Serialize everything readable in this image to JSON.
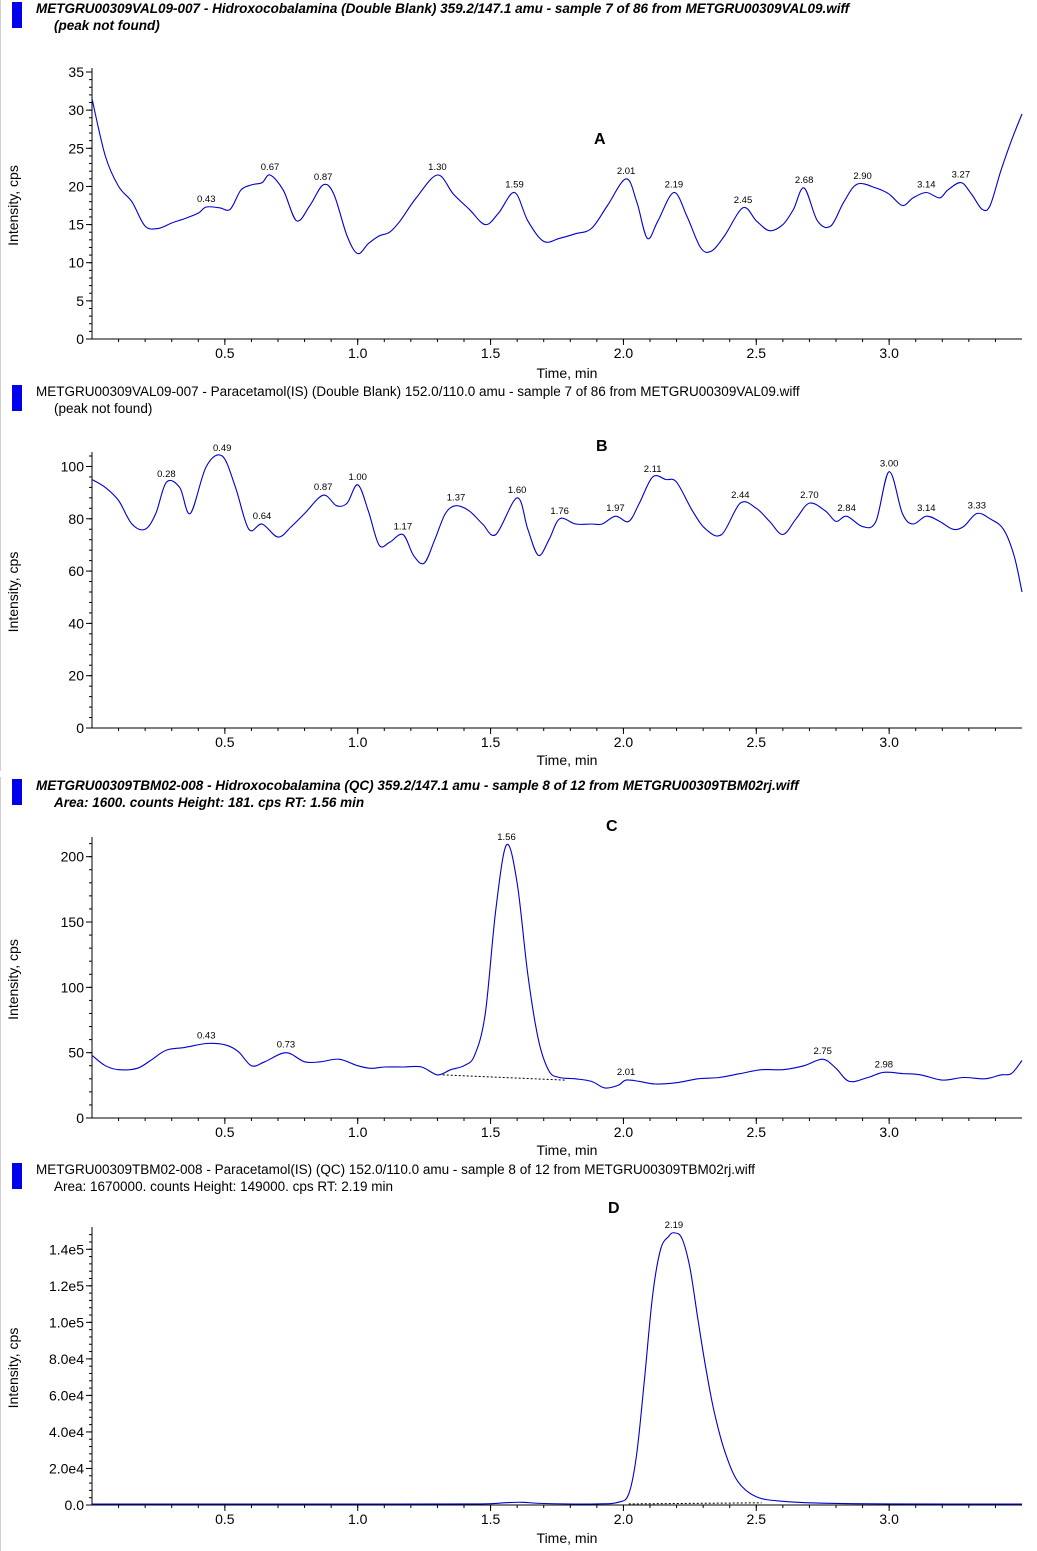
{
  "chart_data": [
    {
      "id": "A",
      "type": "line",
      "letter": "A",
      "header_line1": "METGRU00309VAL09-007 - Hidroxocobalamina (Double Blank) 359.2/147.1 amu - sample 7 of 86 from METGRU00309VAL09.wiff",
      "header_line2": "(peak not found)",
      "xlabel": "Time, min",
      "ylabel": "Intensity, cps",
      "xlim": [
        0.0,
        3.5
      ],
      "ylim": [
        0,
        35
      ],
      "xticks": [
        0.5,
        1.0,
        1.5,
        2.0,
        2.5,
        3.0
      ],
      "xtick_labels": [
        "0.5",
        "1.0",
        "1.5",
        "2.0",
        "2.5",
        "3.0"
      ],
      "yticks": [
        0,
        5,
        10,
        15,
        20,
        25,
        30,
        35
      ],
      "ytick_labels": [
        "0",
        "5",
        "10",
        "15",
        "20",
        "25",
        "30",
        "35"
      ],
      "x": [
        0.0,
        0.05,
        0.1,
        0.15,
        0.2,
        0.25,
        0.3,
        0.35,
        0.4,
        0.43,
        0.48,
        0.52,
        0.56,
        0.6,
        0.64,
        0.67,
        0.72,
        0.77,
        0.82,
        0.87,
        0.91,
        0.96,
        1.0,
        1.04,
        1.08,
        1.12,
        1.16,
        1.22,
        1.3,
        1.36,
        1.42,
        1.48,
        1.53,
        1.59,
        1.64,
        1.7,
        1.76,
        1.82,
        1.88,
        1.94,
        2.01,
        2.05,
        2.09,
        2.13,
        2.19,
        2.24,
        2.29,
        2.33,
        2.38,
        2.45,
        2.5,
        2.55,
        2.6,
        2.64,
        2.68,
        2.73,
        2.78,
        2.83,
        2.88,
        2.95,
        3.0,
        3.05,
        3.09,
        3.14,
        3.19,
        3.22,
        3.27,
        3.31,
        3.35,
        3.38,
        3.42,
        3.46,
        3.5
      ],
      "y": [
        31.5,
        24.0,
        20.0,
        18.0,
        14.8,
        14.5,
        15.2,
        15.8,
        16.5,
        17.3,
        17.2,
        17.0,
        19.5,
        20.2,
        20.5,
        21.5,
        19.5,
        15.5,
        17.5,
        20.2,
        19.0,
        13.5,
        11.2,
        12.5,
        13.5,
        14.0,
        15.5,
        18.5,
        21.5,
        19.0,
        17.0,
        15.0,
        16.5,
        19.2,
        15.5,
        12.8,
        13.2,
        13.8,
        14.5,
        17.5,
        21.0,
        18.0,
        13.2,
        15.5,
        19.2,
        16.0,
        12.0,
        11.5,
        13.5,
        17.2,
        15.5,
        14.2,
        15.0,
        17.0,
        19.8,
        15.5,
        14.8,
        18.0,
        20.3,
        19.8,
        19.0,
        17.5,
        18.5,
        19.2,
        18.5,
        19.5,
        20.5,
        19.0,
        17.0,
        17.5,
        22.0,
        26.0,
        29.5
      ],
      "peak_labels": [
        {
          "x": 0.43,
          "y": 17.3,
          "text": "0.43"
        },
        {
          "x": 0.67,
          "y": 21.5,
          "text": "0.67"
        },
        {
          "x": 0.87,
          "y": 20.2,
          "text": "0.87"
        },
        {
          "x": 1.3,
          "y": 21.5,
          "text": "1.30"
        },
        {
          "x": 1.59,
          "y": 19.2,
          "text": "1.59"
        },
        {
          "x": 2.01,
          "y": 21.0,
          "text": "2.01"
        },
        {
          "x": 2.19,
          "y": 19.2,
          "text": "2.19"
        },
        {
          "x": 2.45,
          "y": 17.2,
          "text": "2.45"
        },
        {
          "x": 2.68,
          "y": 19.8,
          "text": "2.68"
        },
        {
          "x": 2.9,
          "y": 20.3,
          "text": "2.90"
        },
        {
          "x": 3.14,
          "y": 19.2,
          "text": "3.14"
        },
        {
          "x": 3.27,
          "y": 20.5,
          "text": "3.27"
        }
      ],
      "baseline": null
    },
    {
      "id": "B",
      "type": "line",
      "letter": "B",
      "header_line1": "METGRU00309VAL09-007 - Paracetamol(IS) (Double Blank) 152.0/110.0 amu - sample 7 of 86 from METGRU00309VAL09.wiff",
      "header_line2": "(peak not found)",
      "xlabel": "Time, min",
      "ylabel": "Intensity, cps",
      "xlim": [
        0.0,
        3.5
      ],
      "ylim": [
        0,
        104
      ],
      "xticks": [
        0.5,
        1.0,
        1.5,
        2.0,
        2.5,
        3.0
      ],
      "xtick_labels": [
        "0.5",
        "1.0",
        "1.5",
        "2.0",
        "2.5",
        "3.0"
      ],
      "yticks": [
        0,
        20,
        40,
        60,
        80,
        100
      ],
      "ytick_labels": [
        "0",
        "20",
        "40",
        "60",
        "80",
        "100"
      ],
      "x": [
        0.0,
        0.05,
        0.1,
        0.15,
        0.2,
        0.24,
        0.28,
        0.33,
        0.37,
        0.43,
        0.49,
        0.54,
        0.59,
        0.64,
        0.7,
        0.75,
        0.8,
        0.87,
        0.92,
        0.96,
        1.0,
        1.04,
        1.08,
        1.12,
        1.17,
        1.21,
        1.25,
        1.29,
        1.33,
        1.37,
        1.42,
        1.47,
        1.52,
        1.6,
        1.64,
        1.68,
        1.72,
        1.76,
        1.82,
        1.88,
        1.92,
        1.97,
        2.02,
        2.06,
        2.11,
        2.16,
        2.2,
        2.26,
        2.31,
        2.37,
        2.44,
        2.5,
        2.55,
        2.6,
        2.65,
        2.7,
        2.76,
        2.8,
        2.84,
        2.9,
        2.95,
        3.0,
        3.05,
        3.09,
        3.14,
        3.19,
        3.24,
        3.28,
        3.33,
        3.38,
        3.43,
        3.47,
        3.5
      ],
      "y": [
        95,
        92,
        87,
        78,
        76,
        82,
        94,
        92,
        82,
        100,
        104,
        92,
        76,
        78,
        73,
        77,
        82,
        89,
        85,
        86,
        93,
        83,
        70,
        71,
        74,
        66,
        63,
        72,
        82,
        85,
        83,
        78,
        74,
        88,
        76,
        66,
        72,
        80,
        78,
        78,
        78,
        81,
        79,
        86,
        96,
        95,
        94,
        83,
        76,
        74,
        86,
        84,
        79,
        74,
        80,
        86,
        83,
        79,
        81,
        77,
        79,
        98,
        82,
        78,
        81,
        79,
        76,
        77,
        82,
        80,
        76,
        66,
        52
      ],
      "peak_labels": [
        {
          "x": 0.28,
          "y": 94,
          "text": "0.28"
        },
        {
          "x": 0.49,
          "y": 104,
          "text": "0.49"
        },
        {
          "x": 0.64,
          "y": 78,
          "text": "0.64"
        },
        {
          "x": 0.87,
          "y": 89,
          "text": "0.87"
        },
        {
          "x": 1.0,
          "y": 93,
          "text": "1.00"
        },
        {
          "x": 1.17,
          "y": 74,
          "text": "1.17"
        },
        {
          "x": 1.37,
          "y": 85,
          "text": "1.37"
        },
        {
          "x": 1.6,
          "y": 88,
          "text": "1.60"
        },
        {
          "x": 1.76,
          "y": 80,
          "text": "1.76"
        },
        {
          "x": 1.97,
          "y": 81,
          "text": "1.97"
        },
        {
          "x": 2.11,
          "y": 96,
          "text": "2.11"
        },
        {
          "x": 2.44,
          "y": 86,
          "text": "2.44"
        },
        {
          "x": 2.7,
          "y": 86,
          "text": "2.70"
        },
        {
          "x": 2.84,
          "y": 81,
          "text": "2.84"
        },
        {
          "x": 3.0,
          "y": 98,
          "text": "3.00"
        },
        {
          "x": 3.14,
          "y": 81,
          "text": "3.14"
        },
        {
          "x": 3.33,
          "y": 82,
          "text": "3.33"
        }
      ],
      "baseline": null
    },
    {
      "id": "C",
      "type": "line",
      "letter": "C",
      "header_line1": "METGRU00309TBM02-008 - Hidroxocobalamina (QC) 359.2/147.1 amu - sample 8 of 12 from METGRU00309TBM02rj.wiff",
      "header_line2": "Area: 1600. counts  Height: 181. cps  RT: 1.56 min",
      "xlabel": "Time, min",
      "ylabel": "Intensity, cps",
      "xlim": [
        0.0,
        3.5
      ],
      "ylim": [
        0,
        212
      ],
      "xticks": [
        0.5,
        1.0,
        1.5,
        2.0,
        2.5,
        3.0
      ],
      "xtick_labels": [
        "0.5",
        "1.0",
        "1.5",
        "2.0",
        "2.5",
        "3.0"
      ],
      "yticks": [
        0,
        50,
        100,
        150,
        200
      ],
      "ytick_labels": [
        "0",
        "50",
        "100",
        "150",
        "200"
      ],
      "x": [
        0.0,
        0.05,
        0.1,
        0.17,
        0.22,
        0.28,
        0.35,
        0.43,
        0.5,
        0.55,
        0.6,
        0.65,
        0.73,
        0.8,
        0.86,
        0.93,
        1.0,
        1.05,
        1.1,
        1.17,
        1.24,
        1.3,
        1.35,
        1.4,
        1.44,
        1.48,
        1.52,
        1.56,
        1.6,
        1.64,
        1.68,
        1.72,
        1.76,
        1.82,
        1.88,
        1.93,
        1.98,
        2.01,
        2.06,
        2.12,
        2.2,
        2.28,
        2.36,
        2.44,
        2.52,
        2.6,
        2.68,
        2.75,
        2.8,
        2.85,
        2.92,
        2.98,
        3.05,
        3.12,
        3.2,
        3.28,
        3.36,
        3.42,
        3.46,
        3.5
      ],
      "y": [
        48,
        40,
        37,
        38,
        44,
        52,
        54,
        57,
        56,
        51,
        40,
        43,
        50,
        43,
        43,
        45,
        40,
        38,
        39,
        39,
        39,
        33,
        37,
        40,
        48,
        80,
        160,
        209,
        180,
        110,
        60,
        36,
        31,
        30,
        28,
        23,
        25,
        29,
        28,
        26,
        27,
        30,
        31,
        34,
        37,
        37,
        40,
        45,
        38,
        28,
        31,
        35,
        34,
        33,
        29,
        31,
        30,
        33,
        34,
        44
      ],
      "peak_labels": [
        {
          "x": 0.43,
          "y": 57,
          "text": "0.43"
        },
        {
          "x": 0.73,
          "y": 50,
          "text": "0.73"
        },
        {
          "x": 1.56,
          "y": 209,
          "text": "1.56"
        },
        {
          "x": 2.01,
          "y": 29,
          "text": "2.01"
        },
        {
          "x": 2.75,
          "y": 45,
          "text": "2.75"
        },
        {
          "x": 2.98,
          "y": 35,
          "text": "2.98"
        }
      ],
      "baseline": {
        "x": [
          1.32,
          1.78
        ],
        "y": [
          33,
          29
        ]
      }
    },
    {
      "id": "D",
      "type": "line",
      "letter": "D",
      "header_line1": "METGRU00309TBM02-008 - Paracetamol(IS) (QC) 152.0/110.0 amu - sample 8 of 12 from METGRU00309TBM02rj.wiff",
      "header_line2": "Area: 1670000. counts  Height: 149000. cps  RT: 2.19 min",
      "xlabel": "Time, min",
      "ylabel": "Intensity, cps",
      "xlim": [
        0.0,
        3.5
      ],
      "ylim": [
        0,
        150000
      ],
      "xticks": [
        0.5,
        1.0,
        1.5,
        2.0,
        2.5,
        3.0
      ],
      "xtick_labels": [
        "0.5",
        "1.0",
        "1.5",
        "2.0",
        "2.5",
        "3.0"
      ],
      "yticks": [
        0,
        20000,
        40000,
        60000,
        80000,
        100000,
        120000,
        140000
      ],
      "ytick_labels": [
        "0.0",
        "2.0e4",
        "4.0e4",
        "6.0e4",
        "8.0e4",
        "1.0e5",
        "1.2e5",
        "1.4e5"
      ],
      "x": [
        0.0,
        0.5,
        1.0,
        1.45,
        1.55,
        1.62,
        1.7,
        1.9,
        1.98,
        2.02,
        2.05,
        2.08,
        2.11,
        2.14,
        2.17,
        2.19,
        2.22,
        2.25,
        2.28,
        2.31,
        2.34,
        2.38,
        2.43,
        2.5,
        2.6,
        2.75,
        3.0,
        3.5
      ],
      "y": [
        500,
        500,
        500,
        600,
        1200,
        1500,
        800,
        600,
        1500,
        6000,
        28000,
        70000,
        115000,
        140000,
        147000,
        149000,
        146000,
        130000,
        102000,
        75000,
        52000,
        30000,
        13000,
        4500,
        2000,
        1000,
        600,
        500
      ],
      "peak_labels": [
        {
          "x": 2.19,
          "y": 149000,
          "text": "2.19"
        }
      ],
      "baseline": {
        "x": [
          2.02,
          2.52
        ],
        "y": [
          600,
          1200
        ]
      }
    }
  ]
}
